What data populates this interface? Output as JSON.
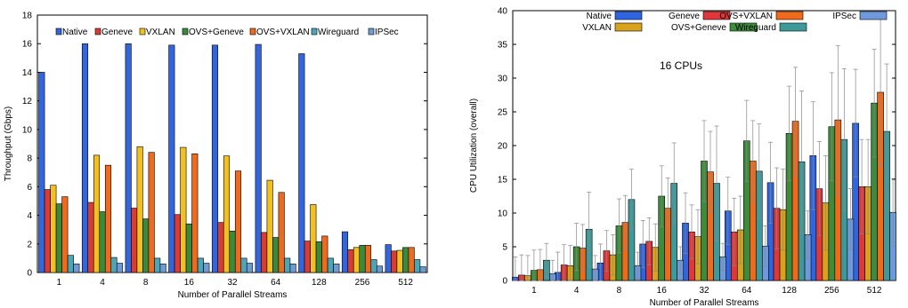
{
  "chart_data": [
    {
      "type": "bar",
      "xlabel": "Number of Parallel Streams",
      "ylabel": "Throughput (Gbps)",
      "ylim": [
        0,
        18
      ],
      "yticks": [
        0,
        2,
        4,
        6,
        8,
        10,
        12,
        14,
        16,
        18
      ],
      "legend_position": "top",
      "categories": [
        "1",
        "4",
        "8",
        "16",
        "32",
        "64",
        "128",
        "256",
        "512"
      ],
      "series": [
        {
          "name": "Native",
          "color": "#3366dd",
          "values": [
            14.0,
            16.0,
            16.0,
            15.9,
            15.9,
            15.95,
            15.3,
            2.85,
            1.95
          ]
        },
        {
          "name": "Geneve",
          "color": "#d93b35",
          "values": [
            5.8,
            4.9,
            4.5,
            4.05,
            3.5,
            2.8,
            2.2,
            1.6,
            1.5
          ]
        },
        {
          "name": "VXLAN",
          "color": "#f2c021",
          "values": [
            6.1,
            8.2,
            8.8,
            8.75,
            8.15,
            6.45,
            4.75,
            1.75,
            1.55
          ]
        },
        {
          "name": "OVS+Geneve",
          "color": "#3a8a3a",
          "values": [
            4.8,
            4.25,
            3.75,
            3.4,
            2.9,
            2.45,
            2.15,
            1.9,
            1.75
          ]
        },
        {
          "name": "OVS+VXLAN",
          "color": "#ee6a1e",
          "values": [
            5.3,
            7.5,
            8.4,
            8.3,
            7.1,
            5.6,
            2.55,
            1.9,
            1.75
          ]
        },
        {
          "name": "Wireguard",
          "color": "#4aa6b8",
          "values": [
            1.2,
            1.05,
            1.0,
            1.0,
            1.0,
            1.0,
            1.0,
            0.9,
            0.9
          ]
        },
        {
          "name": "IPSec",
          "color": "#6f9ad4",
          "values": [
            0.6,
            0.65,
            0.6,
            0.65,
            0.65,
            0.6,
            0.6,
            0.45,
            0.4
          ]
        }
      ]
    },
    {
      "type": "bar",
      "xlabel": "Number of Parallel Streams",
      "ylabel": "CPU Utilization (overall)",
      "ylim": [
        0,
        40
      ],
      "yticks": [
        0,
        5,
        10,
        15,
        20,
        25,
        30,
        35,
        40
      ],
      "legend_position": "top",
      "annotation": "16 CPUs",
      "has_error_bars": true,
      "categories": [
        "1",
        "4",
        "8",
        "16",
        "32",
        "64",
        "128",
        "256",
        "512"
      ],
      "series": [
        {
          "name": "Native",
          "color": "#2f66e0",
          "values": [
            0.5,
            1.2,
            2.6,
            5.4,
            8.5,
            10.3,
            14.5,
            18.5,
            23.3
          ],
          "err": [
            3.0,
            3.0,
            2.8,
            3.5,
            4.5,
            5.0,
            6.0,
            8.0,
            8.0
          ]
        },
        {
          "name": "Geneve",
          "color": "#e0383a",
          "values": [
            0.8,
            2.3,
            4.4,
            5.8,
            7.2,
            7.2,
            10.7,
            13.6,
            13.9
          ],
          "err": [
            3.0,
            3.0,
            3.0,
            3.5,
            4.0,
            5.0,
            6.0,
            7.0,
            7.0
          ]
        },
        {
          "name": "VXLAN",
          "color": "#d8a21c",
          "values": [
            0.7,
            2.2,
            3.8,
            4.9,
            6.5,
            7.5,
            10.5,
            11.5,
            13.9
          ],
          "err": [
            3.0,
            3.0,
            3.0,
            3.5,
            4.0,
            5.0,
            6.0,
            7.0,
            7.0
          ]
        },
        {
          "name": "OVS+Geneve",
          "color": "#3c8c3c",
          "values": [
            1.5,
            5.0,
            8.1,
            12.5,
            17.7,
            20.7,
            21.8,
            22.8,
            26.3
          ],
          "err": [
            3.0,
            3.5,
            4.0,
            4.5,
            6.0,
            6.0,
            7.0,
            8.0,
            8.0
          ]
        },
        {
          "name": "OVS+VXLAN",
          "color": "#f06a1c",
          "values": [
            1.6,
            4.8,
            8.6,
            10.7,
            16.1,
            17.7,
            23.6,
            23.8,
            27.9
          ],
          "err": [
            3.0,
            3.5,
            4.0,
            4.5,
            6.0,
            6.0,
            8.0,
            11.0,
            11.0
          ]
        },
        {
          "name": "Wireguard",
          "color": "#3e9a9a",
          "values": [
            3.0,
            7.6,
            12.0,
            14.4,
            14.4,
            16.2,
            17.6,
            20.9,
            22.1
          ],
          "err": [
            2.5,
            5.5,
            4.5,
            6.0,
            8.5,
            7.0,
            10.5,
            10.5,
            10.0
          ]
        },
        {
          "name": "IPSec",
          "color": "#6e9adc",
          "values": [
            1.0,
            1.7,
            2.2,
            3.0,
            3.5,
            5.1,
            6.8,
            9.1,
            10.1
          ],
          "err": [
            2.0,
            2.0,
            2.0,
            2.0,
            2.0,
            3.0,
            3.5,
            4.5,
            5.0
          ]
        }
      ]
    }
  ]
}
